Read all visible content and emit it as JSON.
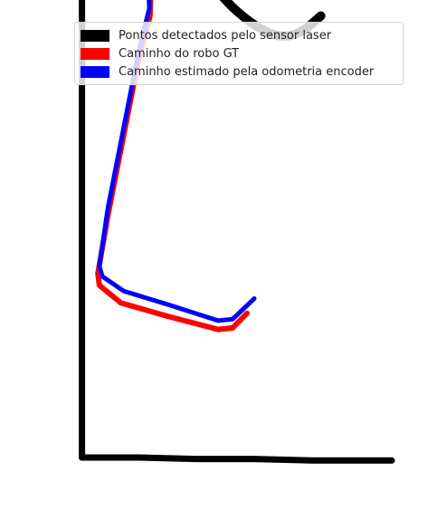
{
  "chart_data": {
    "type": "line",
    "title": "",
    "xlabel": "",
    "ylabel": "",
    "axes_visible": false,
    "grid": false,
    "legend_position": "top-right",
    "colors": {
      "laser": "#000000",
      "gt": "#ff0000",
      "odometry": "#0000ff"
    },
    "series": [
      {
        "name": "Pontos detectados pelo sensor laser",
        "kind": "scatter",
        "segments": [
          {
            "part": "left-wall",
            "x": [
              0.1,
              0.1,
              0.1,
              0.1
            ],
            "y": [
              50.0,
              40.0,
              20.0,
              8.0
            ]
          },
          {
            "part": "wall-top-tick",
            "x": [
              -0.2,
              0.1
            ],
            "y": [
              50.0,
              50.1
            ]
          },
          {
            "part": "bottom-wall",
            "x": [
              0.1,
              4.0,
              8.0,
              12.0,
              16.0,
              21.5
            ],
            "y": [
              8.0,
              8.0,
              7.9,
              7.9,
              7.8,
              7.8
            ]
          },
          {
            "part": "circular-obstacle",
            "x": [
              12.5,
              11.0,
              9.0,
              7.2,
              6.0,
              5.7,
              6.2,
              7.6,
              9.5,
              11.7,
              13.7,
              15.2,
              16.6
            ],
            "y": [
              62.0,
              61.3,
              60.0,
              57.5,
              54.0,
              50.0,
              46.0,
              42.5,
              39.5,
              37.5,
              36.5,
              36.8,
              38.0
            ]
          }
        ]
      },
      {
        "name": "Caminho do robo GT",
        "kind": "line",
        "x": [
          2.5,
          2.5,
          2.55,
          2.8,
          3.7,
          4.85,
          4.8,
          4.0,
          3.0,
          1.9,
          1.2,
          1.3,
          2.8,
          6.0,
          9.5,
          10.5,
          11.5
        ],
        "y": [
          64.0,
          60.0,
          52.0,
          46.5,
          43.0,
          40.0,
          38.0,
          35.0,
          30.0,
          24.5,
          20.5,
          19.7,
          18.5,
          17.6,
          16.7,
          16.8,
          17.8
        ]
      },
      {
        "name": "Caminho estimado pela odometria encoder",
        "kind": "line",
        "x": [
          1.95,
          2.1,
          2.35,
          2.7,
          3.4,
          4.7,
          4.75,
          4.0,
          3.0,
          1.9,
          1.3,
          1.5,
          3.0,
          6.0,
          9.5,
          10.5,
          12.0
        ],
        "y": [
          64.0,
          60.0,
          52.0,
          47.0,
          43.5,
          40.3,
          38.5,
          35.5,
          30.5,
          25.0,
          21.0,
          20.3,
          19.3,
          18.4,
          17.3,
          17.4,
          18.8
        ]
      }
    ]
  }
}
